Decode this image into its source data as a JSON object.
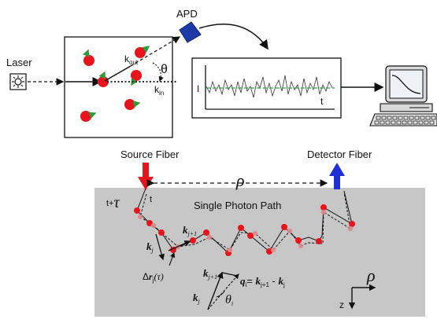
{
  "top": {
    "laser_label": "Laser",
    "apd_label": "APD",
    "k_out": {
      "base": "k",
      "sub": "out"
    },
    "k_in": {
      "base": "k",
      "sub": "in"
    },
    "theta": "θ",
    "signal_y_label": "I",
    "signal_x_label": "t"
  },
  "bottom": {
    "source_fiber_label": "Source Fiber",
    "detector_fiber_label": "Detector Fiber",
    "rho": "ρ",
    "path_title": "Single Photon Path",
    "t_label": "t",
    "t_plus": "t+",
    "tau": "τ",
    "kj": {
      "base": "k",
      "sub": "j"
    },
    "kj1": {
      "base": "k",
      "sub": "j+1"
    },
    "delta_r": {
      "prefix": "Δ",
      "base": "r",
      "sub": "j",
      "suffix": "(τ)"
    },
    "eq_kj1": {
      "base": "k",
      "sub": "j+1"
    },
    "eq_kj": {
      "base": "k",
      "sub": "j"
    },
    "eq_theta": {
      "base": "θ",
      "sub": "i"
    },
    "eq_q": {
      "base": "q",
      "sub": "i",
      "rhs": "= ",
      "rhs_k1": "k",
      "rhs_k1_sub": "j+1",
      "minus": " - ",
      "rhs_k2": "k",
      "rhs_k2_sub": "j"
    },
    "axis_rho": "ρ",
    "axis_z": "z"
  },
  "colors": {
    "particle": "#e8141c",
    "arrow_red": "#e8141c",
    "arrow_blue": "#1f2fd6",
    "apd": "#1e3aa8",
    "medium": "#c7c7c7",
    "dashed_green": "#27a844"
  }
}
